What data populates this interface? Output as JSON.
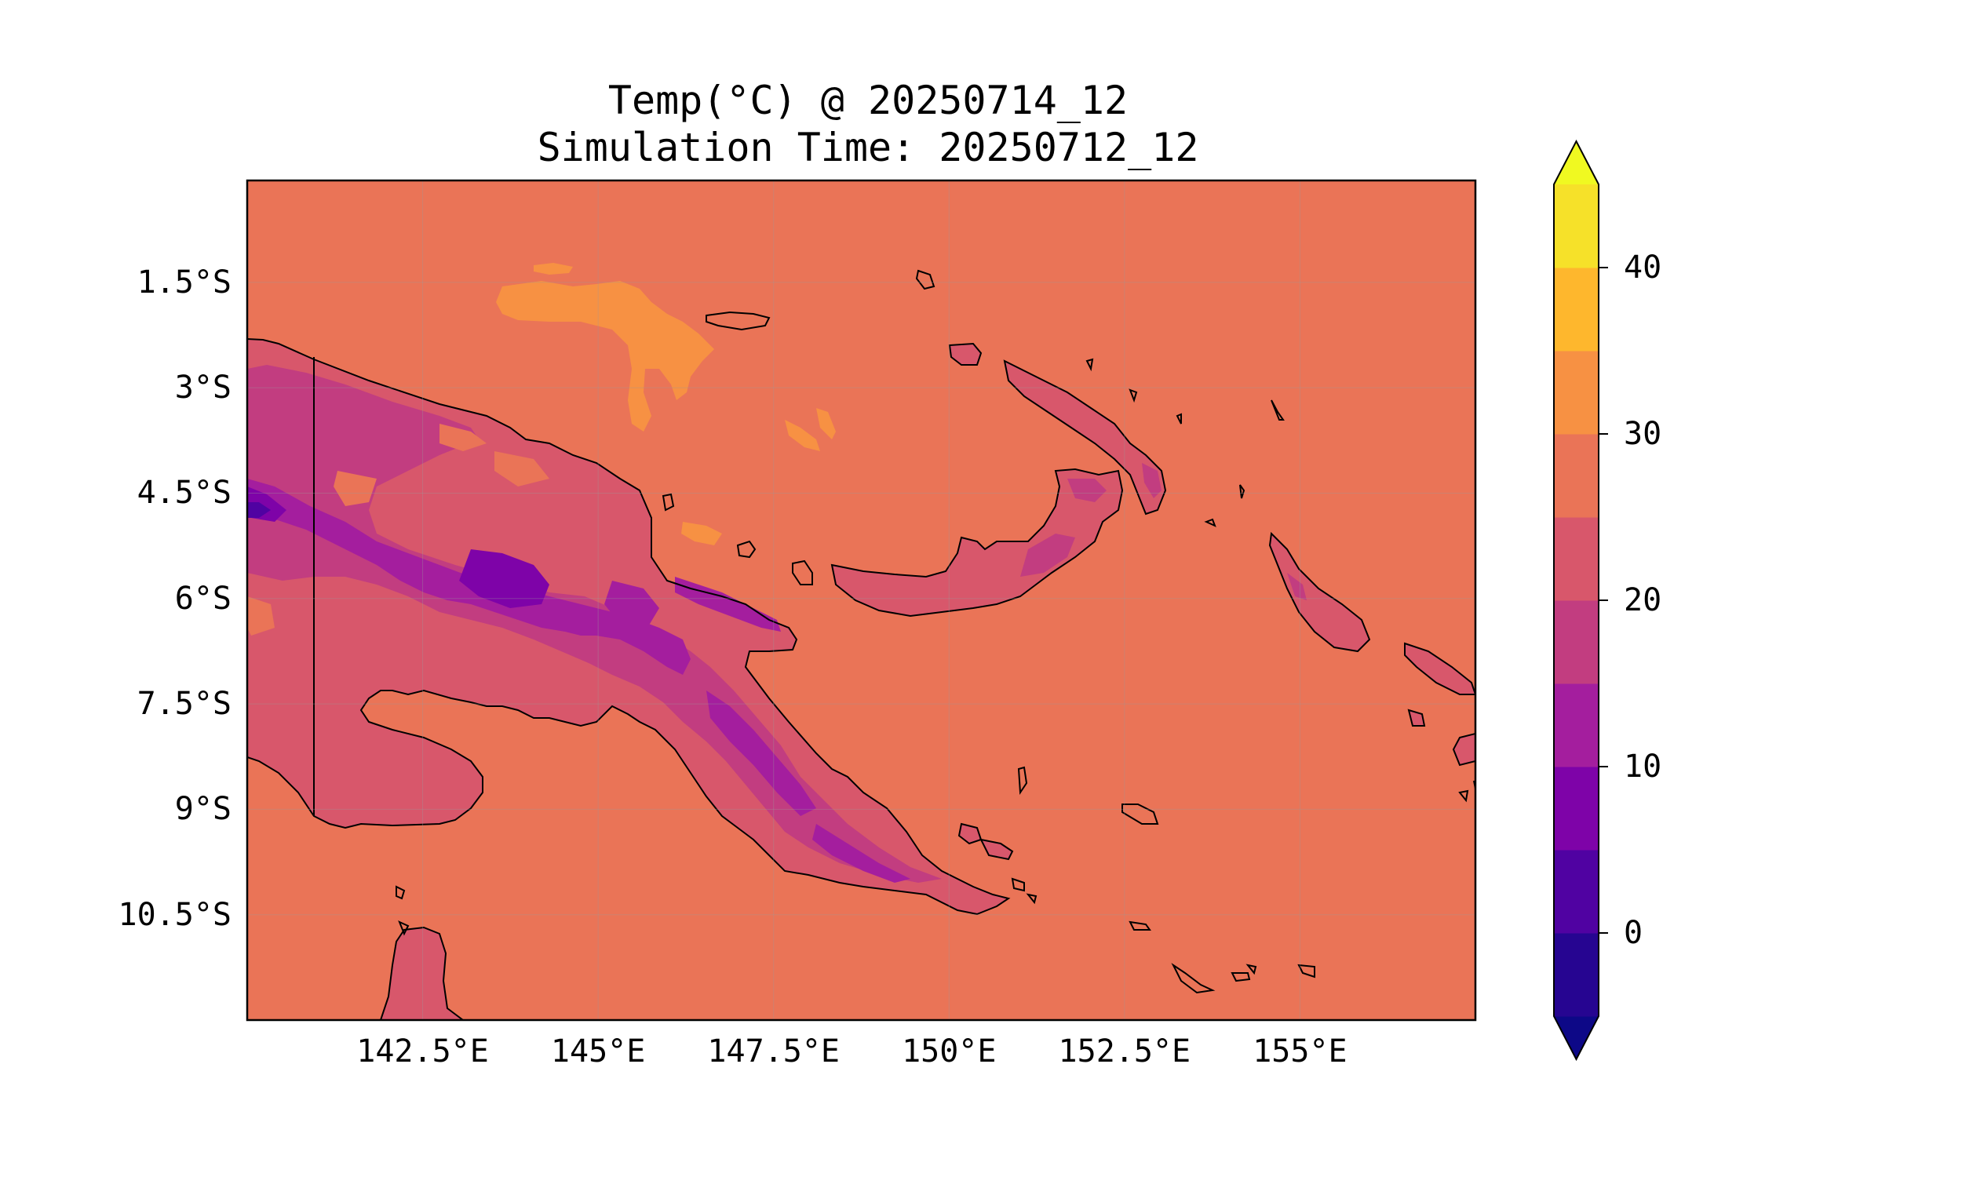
{
  "title": "Temp(°C) @ 20250714_12",
  "subtitle": "Simulation Time: 20250712_12",
  "map": {
    "extent": {
      "lon_min": 140.0,
      "lon_max": 157.5,
      "lat_min": -12.0,
      "lat_max": -0.05
    },
    "lat_ticks": [
      {
        "value": -1.5,
        "label": "1.5°S"
      },
      {
        "value": -3.0,
        "label": "3°S"
      },
      {
        "value": -4.5,
        "label": "4.5°S"
      },
      {
        "value": -6.0,
        "label": "6°S"
      },
      {
        "value": -7.5,
        "label": "7.5°S"
      },
      {
        "value": -9.0,
        "label": "9°S"
      },
      {
        "value": -10.5,
        "label": "10.5°S"
      }
    ],
    "lon_ticks": [
      {
        "value": 142.5,
        "label": "142.5°E"
      },
      {
        "value": 145.0,
        "label": "145°E"
      },
      {
        "value": 147.5,
        "label": "147.5°E"
      },
      {
        "value": 150.0,
        "label": "150°E"
      },
      {
        "value": 152.5,
        "label": "152.5°E"
      },
      {
        "value": 155.0,
        "label": "155°E"
      }
    ],
    "gridlines": true,
    "background_color": "#ea7457"
  },
  "colorbar": {
    "ticks": [
      {
        "value": 0,
        "label": "0"
      },
      {
        "value": 10,
        "label": "10"
      },
      {
        "value": 20,
        "label": "20"
      },
      {
        "value": 30,
        "label": "30"
      },
      {
        "value": 40,
        "label": "40"
      }
    ],
    "levels": [
      -5,
      0,
      5,
      10,
      15,
      20,
      25,
      30,
      35,
      40,
      45
    ],
    "colors": [
      "#260591",
      "#5002a2",
      "#7e03a8",
      "#a41e9e",
      "#c23d80",
      "#d8576b",
      "#ea7457",
      "#f79143",
      "#feb72d",
      "#f6e129"
    ],
    "under_color": "#0d0887",
    "over_color": "#f0f921",
    "extend": "both"
  }
}
